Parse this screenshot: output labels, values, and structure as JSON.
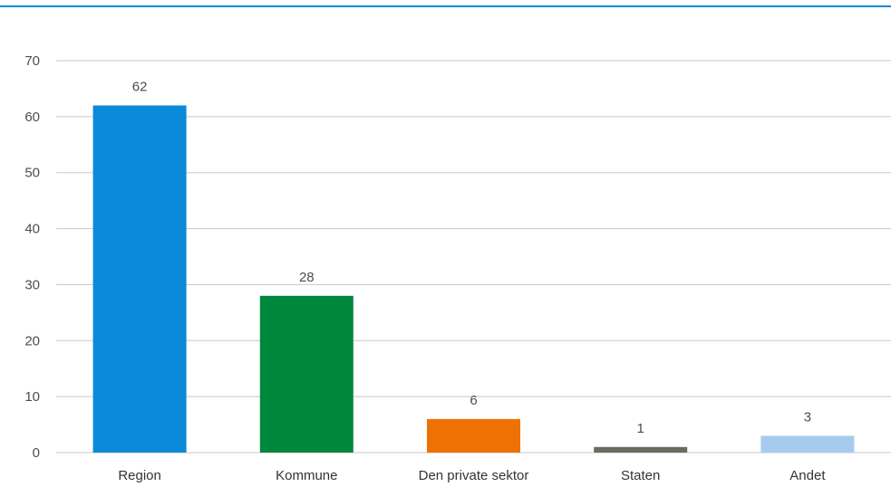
{
  "chart_data": {
    "type": "bar",
    "categories": [
      "Region",
      "Kommune",
      "Den private sektor",
      "Staten",
      "Andet"
    ],
    "values": [
      62,
      28,
      6,
      1,
      3
    ],
    "bar_colors": [
      "#0a8ad8",
      "#00873e",
      "#ee7203",
      "#6b6b5f",
      "#a7cbee"
    ],
    "data_labels": [
      "62",
      "28",
      "6",
      "1",
      "3"
    ],
    "ylim": [
      0,
      70
    ],
    "yticks": [
      "0",
      "10",
      "20",
      "30",
      "40",
      "50",
      "60",
      "70"
    ],
    "grid": true,
    "legend": "none"
  },
  "colors": {
    "accent": "#0a8ad8",
    "grid": "#c8c8c8",
    "text": "#4d4d4d"
  }
}
